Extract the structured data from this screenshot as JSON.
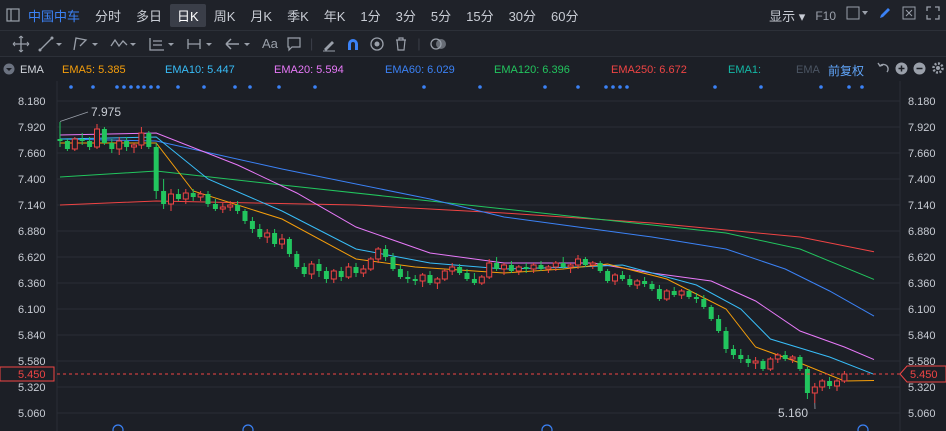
{
  "toolbar": {
    "stock_name": "中国中车",
    "timeframes": [
      "分时",
      "多日",
      "日K",
      "周K",
      "月K",
      "季K",
      "年K",
      "1分",
      "3分",
      "5分",
      "15分",
      "30分",
      "60分"
    ],
    "active_timeframe": 2,
    "display_label": "显示",
    "f10_label": "F10"
  },
  "drawing_tools": {
    "text_tool_label": "Aa"
  },
  "indicator_bar": {
    "label": "EMA",
    "items": [
      {
        "text": "EMA5: 5.385",
        "color": "#f59e0b",
        "x": 62
      },
      {
        "text": "EMA10: 5.447",
        "color": "#38bdf8",
        "x": 165
      },
      {
        "text": "EMA20: 5.594",
        "color": "#e879f9",
        "x": 274
      },
      {
        "text": "EMA60: 6.029",
        "color": "#3b82f6",
        "x": 385
      },
      {
        "text": "EMA120: 6.396",
        "color": "#22c55e",
        "x": 494
      },
      {
        "text": "EMA250: 6.672",
        "color": "#ef4444",
        "x": 611
      },
      {
        "text": "EMA1:",
        "color": "#14b8a6",
        "x": 728
      },
      {
        "text": "EMA",
        "color": "#4b5563",
        "x": 796
      }
    ],
    "adjust_label": "前复权"
  },
  "chart_data": {
    "type": "candlestick",
    "y_ticks": [
      8.18,
      7.92,
      7.66,
      7.4,
      7.14,
      6.88,
      6.62,
      6.36,
      6.1,
      5.84,
      5.58,
      5.32,
      5.06
    ],
    "ylim": [
      4.95,
      8.28
    ],
    "current_price": 5.45,
    "max_label": "7.975",
    "min_label": "5.160",
    "candles": [
      [
        7.8,
        7.97,
        7.72,
        7.78
      ],
      [
        7.78,
        7.8,
        7.68,
        7.7
      ],
      [
        7.7,
        7.82,
        7.68,
        7.8
      ],
      [
        7.8,
        7.86,
        7.74,
        7.78
      ],
      [
        7.78,
        7.82,
        7.69,
        7.72
      ],
      [
        7.72,
        7.95,
        7.7,
        7.9
      ],
      [
        7.9,
        7.92,
        7.74,
        7.76
      ],
      [
        7.76,
        7.8,
        7.66,
        7.7
      ],
      [
        7.7,
        7.82,
        7.64,
        7.78
      ],
      [
        7.78,
        7.82,
        7.68,
        7.72
      ],
      [
        7.72,
        7.76,
        7.66,
        7.74
      ],
      [
        7.74,
        7.92,
        7.7,
        7.86
      ],
      [
        7.86,
        7.88,
        7.7,
        7.72
      ],
      [
        7.72,
        7.76,
        7.2,
        7.28
      ],
      [
        7.28,
        7.4,
        7.1,
        7.15
      ],
      [
        7.15,
        7.3,
        7.08,
        7.25
      ],
      [
        7.25,
        7.3,
        7.18,
        7.2
      ],
      [
        7.2,
        7.3,
        7.15,
        7.26
      ],
      [
        7.26,
        7.3,
        7.18,
        7.22
      ],
      [
        7.22,
        7.28,
        7.18,
        7.25
      ],
      [
        7.25,
        7.28,
        7.12,
        7.15
      ],
      [
        7.15,
        7.2,
        7.08,
        7.1
      ],
      [
        7.1,
        7.16,
        7.06,
        7.12
      ],
      [
        7.12,
        7.18,
        7.08,
        7.14
      ],
      [
        7.14,
        7.18,
        7.05,
        7.08
      ],
      [
        7.08,
        7.1,
        6.95,
        6.98
      ],
      [
        6.98,
        7.02,
        6.86,
        6.9
      ],
      [
        6.9,
        6.95,
        6.8,
        6.82
      ],
      [
        6.82,
        6.9,
        6.76,
        6.86
      ],
      [
        6.86,
        6.9,
        6.72,
        6.75
      ],
      [
        6.75,
        6.85,
        6.7,
        6.8
      ],
      [
        6.8,
        6.82,
        6.62,
        6.65
      ],
      [
        6.65,
        6.68,
        6.5,
        6.52
      ],
      [
        6.52,
        6.56,
        6.42,
        6.45
      ],
      [
        6.45,
        6.58,
        6.4,
        6.55
      ],
      [
        6.55,
        6.6,
        6.42,
        6.48
      ],
      [
        6.48,
        6.52,
        6.36,
        6.4
      ],
      [
        6.4,
        6.5,
        6.36,
        6.48
      ],
      [
        6.48,
        6.52,
        6.38,
        6.42
      ],
      [
        6.42,
        6.56,
        6.4,
        6.52
      ],
      [
        6.52,
        6.56,
        6.42,
        6.46
      ],
      [
        6.46,
        6.54,
        6.42,
        6.5
      ],
      [
        6.5,
        6.62,
        6.48,
        6.6
      ],
      [
        6.6,
        6.72,
        6.56,
        6.7
      ],
      [
        6.7,
        6.74,
        6.58,
        6.62
      ],
      [
        6.62,
        6.66,
        6.48,
        6.5
      ],
      [
        6.5,
        6.54,
        6.4,
        6.42
      ],
      [
        6.42,
        6.48,
        6.36,
        6.4
      ],
      [
        6.4,
        6.44,
        6.34,
        6.38
      ],
      [
        6.38,
        6.46,
        6.32,
        6.44
      ],
      [
        6.44,
        6.48,
        6.34,
        6.36
      ],
      [
        6.36,
        6.42,
        6.3,
        6.4
      ],
      [
        6.4,
        6.5,
        6.38,
        6.48
      ],
      [
        6.48,
        6.56,
        6.44,
        6.52
      ],
      [
        6.52,
        6.55,
        6.44,
        6.46
      ],
      [
        6.46,
        6.5,
        6.38,
        6.4
      ],
      [
        6.4,
        6.46,
        6.34,
        6.36
      ],
      [
        6.36,
        6.44,
        6.34,
        6.42
      ],
      [
        6.42,
        6.6,
        6.4,
        6.56
      ],
      [
        6.56,
        6.62,
        6.48,
        6.5
      ],
      [
        6.5,
        6.56,
        6.44,
        6.54
      ],
      [
        6.54,
        6.58,
        6.46,
        6.48
      ],
      [
        6.48,
        6.54,
        6.44,
        6.52
      ],
      [
        6.52,
        6.56,
        6.46,
        6.5
      ],
      [
        6.5,
        6.56,
        6.46,
        6.54
      ],
      [
        6.54,
        6.58,
        6.48,
        6.5
      ],
      [
        6.5,
        6.54,
        6.46,
        6.52
      ],
      [
        6.52,
        6.58,
        6.48,
        6.56
      ],
      [
        6.56,
        6.62,
        6.5,
        6.52
      ],
      [
        6.52,
        6.56,
        6.46,
        6.54
      ],
      [
        6.54,
        6.64,
        6.5,
        6.6
      ],
      [
        6.6,
        6.62,
        6.52,
        6.54
      ],
      [
        6.54,
        6.58,
        6.5,
        6.56
      ],
      [
        6.56,
        6.58,
        6.46,
        6.48
      ],
      [
        6.48,
        6.5,
        6.36,
        6.38
      ],
      [
        6.38,
        6.46,
        6.34,
        6.44
      ],
      [
        6.44,
        6.48,
        6.38,
        6.4
      ],
      [
        6.4,
        6.44,
        6.32,
        6.34
      ],
      [
        6.34,
        6.4,
        6.3,
        6.38
      ],
      [
        6.38,
        6.42,
        6.32,
        6.35
      ],
      [
        6.35,
        6.38,
        6.28,
        6.3
      ],
      [
        6.3,
        6.34,
        6.18,
        6.2
      ],
      [
        6.2,
        6.3,
        6.18,
        6.28
      ],
      [
        6.28,
        6.32,
        6.22,
        6.24
      ],
      [
        6.24,
        6.3,
        6.2,
        6.28
      ],
      [
        6.28,
        6.3,
        6.2,
        6.22
      ],
      [
        6.22,
        6.26,
        6.16,
        6.2
      ],
      [
        6.2,
        6.24,
        6.1,
        6.12
      ],
      [
        6.12,
        6.14,
        5.98,
        6.0
      ],
      [
        6.0,
        6.04,
        5.86,
        5.88
      ],
      [
        5.88,
        5.92,
        5.66,
        5.7
      ],
      [
        5.7,
        5.74,
        5.6,
        5.64
      ],
      [
        5.64,
        5.7,
        5.56,
        5.6
      ],
      [
        5.6,
        5.64,
        5.52,
        5.56
      ],
      [
        5.56,
        5.62,
        5.5,
        5.58
      ],
      [
        5.58,
        5.6,
        5.48,
        5.5
      ],
      [
        5.5,
        5.62,
        5.48,
        5.6
      ],
      [
        5.6,
        5.66,
        5.56,
        5.64
      ],
      [
        5.64,
        5.68,
        5.58,
        5.6
      ],
      [
        5.6,
        5.64,
        5.56,
        5.62
      ],
      [
        5.62,
        5.64,
        5.48,
        5.5
      ],
      [
        5.5,
        5.52,
        5.2,
        5.26
      ],
      [
        5.26,
        5.36,
        5.16,
        5.32
      ],
      [
        5.32,
        5.4,
        5.28,
        5.38
      ],
      [
        5.38,
        5.42,
        5.3,
        5.33
      ],
      [
        5.33,
        5.4,
        5.28,
        5.38
      ],
      [
        5.38,
        5.48,
        5.36,
        5.45
      ]
    ],
    "ema5": [
      [
        0,
        7.76
      ],
      [
        13,
        7.76
      ],
      [
        18,
        7.28
      ],
      [
        30,
        7.0
      ],
      [
        40,
        6.6
      ],
      [
        48,
        6.52
      ],
      [
        60,
        6.46
      ],
      [
        68,
        6.5
      ],
      [
        74,
        6.55
      ],
      [
        82,
        6.4
      ],
      [
        90,
        6.1
      ],
      [
        94,
        5.72
      ],
      [
        100,
        5.56
      ],
      [
        106,
        5.38
      ],
      [
        110,
        5.385
      ]
    ],
    "ema10": [
      [
        0,
        7.8
      ],
      [
        13,
        7.82
      ],
      [
        20,
        7.4
      ],
      [
        30,
        7.08
      ],
      [
        40,
        6.7
      ],
      [
        50,
        6.56
      ],
      [
        60,
        6.5
      ],
      [
        70,
        6.52
      ],
      [
        76,
        6.54
      ],
      [
        86,
        6.34
      ],
      [
        92,
        6.1
      ],
      [
        96,
        5.8
      ],
      [
        104,
        5.62
      ],
      [
        110,
        5.447
      ]
    ],
    "ema20": [
      [
        0,
        7.84
      ],
      [
        13,
        7.86
      ],
      [
        24,
        7.54
      ],
      [
        32,
        7.26
      ],
      [
        40,
        6.92
      ],
      [
        50,
        6.66
      ],
      [
        60,
        6.56
      ],
      [
        72,
        6.56
      ],
      [
        80,
        6.46
      ],
      [
        88,
        6.38
      ],
      [
        94,
        6.18
      ],
      [
        100,
        5.88
      ],
      [
        106,
        5.72
      ],
      [
        110,
        5.594
      ]
    ],
    "ema60": [
      [
        0,
        7.8
      ],
      [
        13,
        7.78
      ],
      [
        30,
        7.5
      ],
      [
        50,
        7.2
      ],
      [
        60,
        7.02
      ],
      [
        70,
        6.92
      ],
      [
        80,
        6.82
      ],
      [
        90,
        6.7
      ],
      [
        98,
        6.5
      ],
      [
        104,
        6.28
      ],
      [
        110,
        6.029
      ]
    ],
    "ema120": [
      [
        0,
        7.42
      ],
      [
        13,
        7.48
      ],
      [
        30,
        7.34
      ],
      [
        50,
        7.18
      ],
      [
        70,
        7.02
      ],
      [
        90,
        6.86
      ],
      [
        100,
        6.7
      ],
      [
        110,
        6.396
      ]
    ],
    "ema250": [
      [
        0,
        7.14
      ],
      [
        13,
        7.18
      ],
      [
        40,
        7.14
      ],
      [
        60,
        7.06
      ],
      [
        80,
        6.96
      ],
      [
        100,
        6.82
      ],
      [
        110,
        6.672
      ]
    ]
  }
}
